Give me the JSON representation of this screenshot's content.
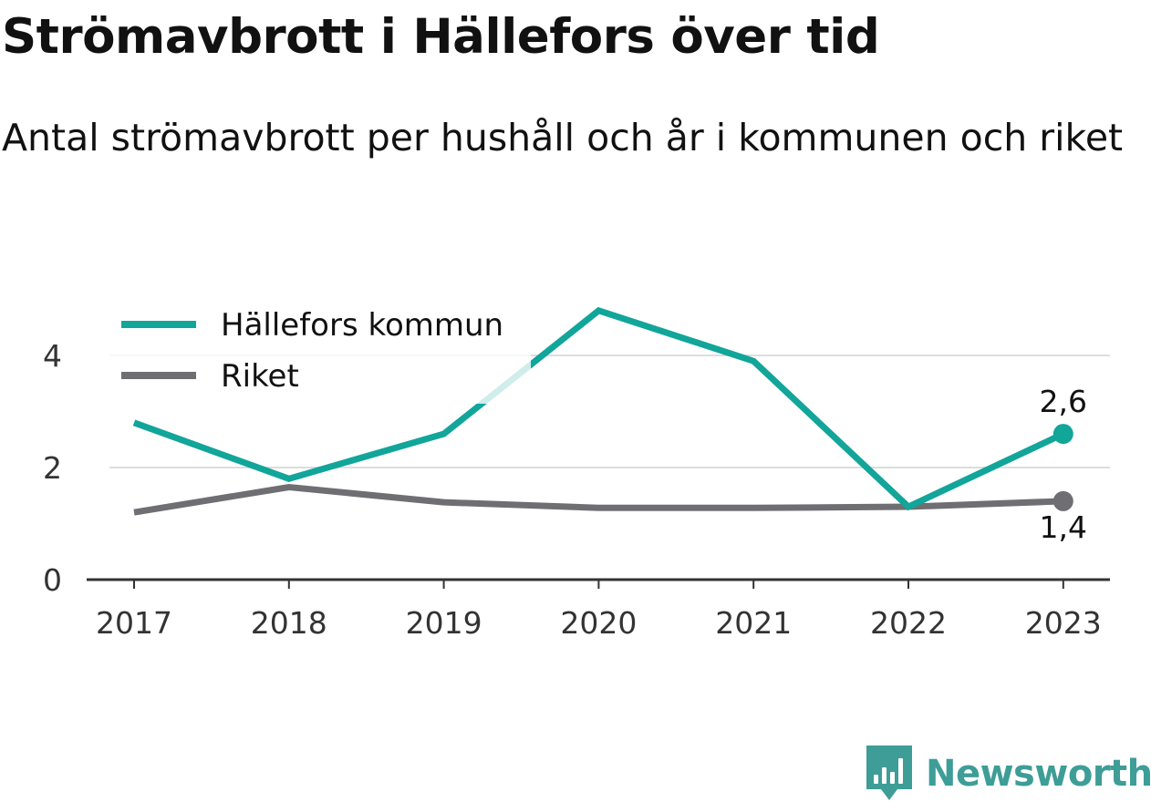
{
  "title": "Strömavbrott i Hällefors över tid",
  "subtitle": "Antal strömavbrott per hushåll och år i kommunen och riket",
  "brand": {
    "name": "Newsworthy",
    "icon": "newsworthy-logo-icon",
    "color": "#3e9d97"
  },
  "chart_data": {
    "type": "line",
    "categories": [
      "2017",
      "2018",
      "2019",
      "2020",
      "2021",
      "2022",
      "2023"
    ],
    "y_ticks": [
      "0",
      "2",
      "4"
    ],
    "ylim": [
      0,
      4.8
    ],
    "grid": true,
    "legend_position": "top-left",
    "series": [
      {
        "name": "Hällefors kommun",
        "color": "#12a59a",
        "values": [
          2.8,
          1.8,
          2.6,
          4.8,
          3.9,
          1.3,
          2.6
        ],
        "end_label": "2,6",
        "end_label_position": "above"
      },
      {
        "name": "Riket",
        "color": "#6e6e73",
        "values": [
          1.2,
          1.65,
          1.38,
          1.28,
          1.28,
          1.3,
          1.4
        ],
        "end_label": "1,4",
        "end_label_position": "below"
      }
    ]
  }
}
